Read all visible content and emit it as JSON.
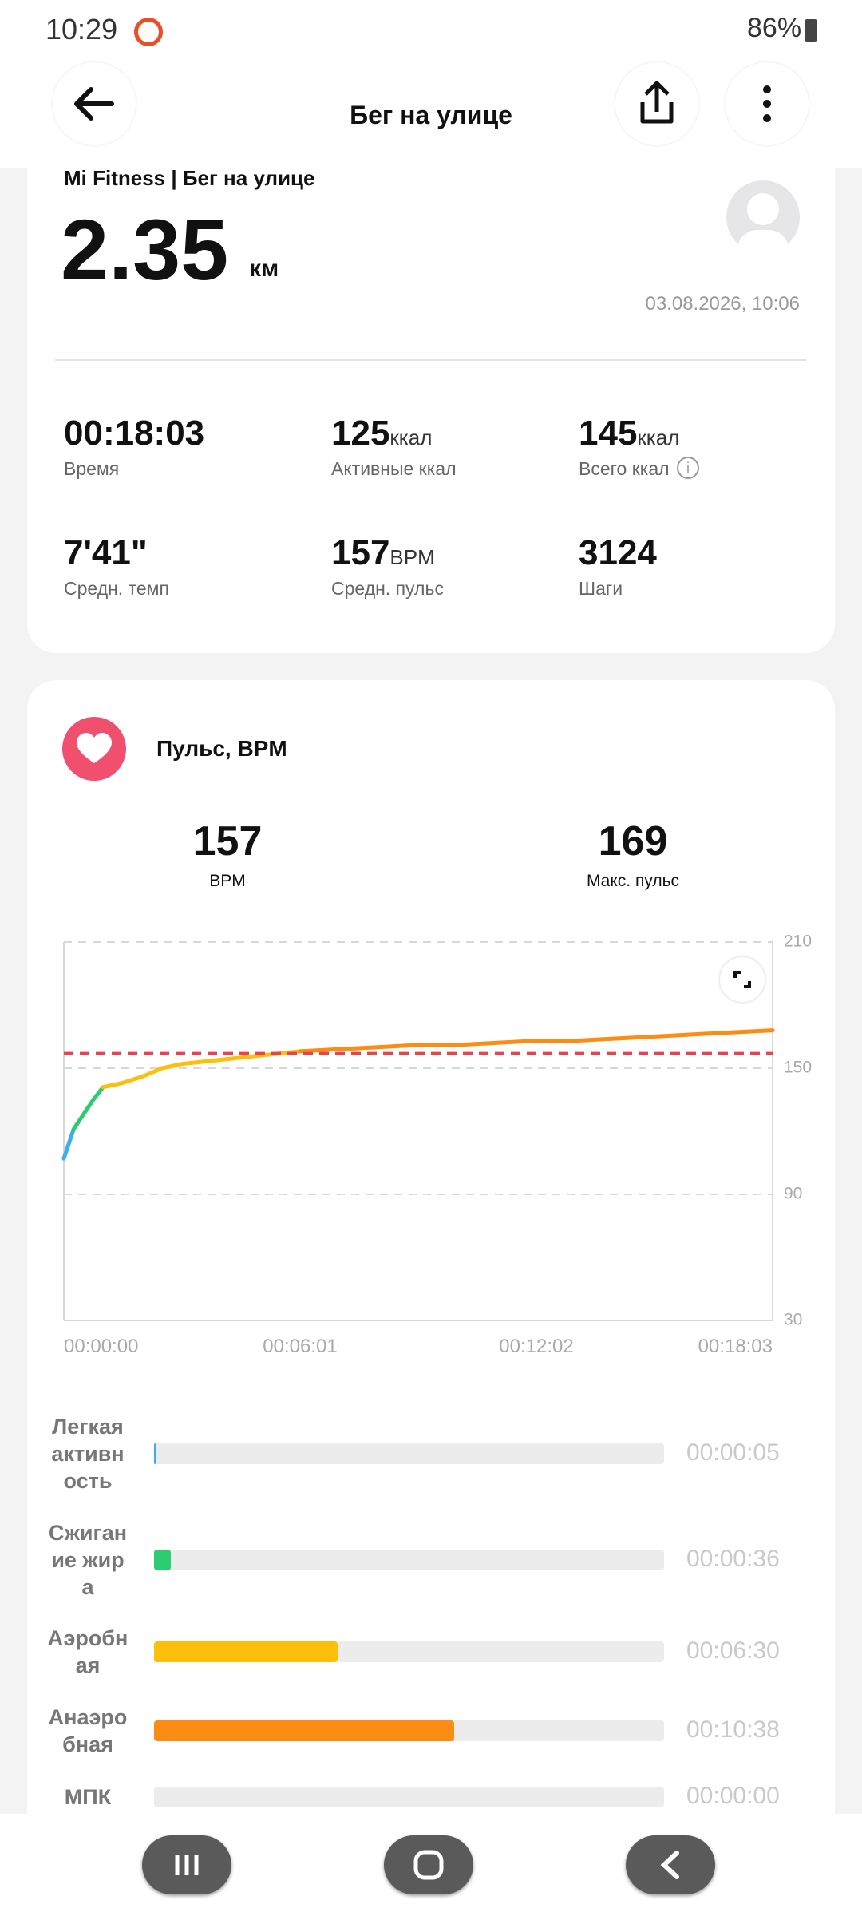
{
  "status_bar": {
    "time": "10:29",
    "battery": "86%"
  },
  "header": {
    "title": "Бег на улице"
  },
  "summary": {
    "source": "Mi Fitness | Бег на улице",
    "distance": "2.35",
    "distance_unit": "км",
    "date": "03.08.2026, 10:06",
    "stats": [
      {
        "value": "00:18:03",
        "label": "Время"
      },
      {
        "value": "125",
        "unit": "ккал",
        "label": "Активные ккал"
      },
      {
        "value": "145",
        "unit": "ккал",
        "label": "Всего ккал"
      },
      {
        "value": "7'41\"",
        "label": "Средн. темп"
      },
      {
        "value": "157",
        "unit": "BPM",
        "label": "Средн. пульс"
      },
      {
        "value": "3124",
        "label": "Шаги"
      }
    ]
  },
  "heart_rate": {
    "title": "Пульс, BPM",
    "average": {
      "value": "157",
      "label": "BPM"
    },
    "max": {
      "value": "169",
      "label": "Макс. пульс"
    }
  },
  "chart_data": {
    "type": "line",
    "x": [
      0,
      15,
      30,
      45,
      60,
      90,
      120,
      150,
      180,
      210,
      240,
      270,
      300,
      360,
      420,
      480,
      540,
      600,
      660,
      720,
      780,
      840,
      900,
      960,
      1020,
      1083
    ],
    "series": [
      {
        "color": "#3daee9",
        "values": [
          107,
          121,
          null,
          null,
          null,
          null,
          null,
          null,
          null,
          null,
          null,
          null,
          null,
          null,
          null,
          null,
          null,
          null,
          null,
          null,
          null,
          null,
          null,
          null,
          null,
          null
        ]
      },
      {
        "color": "#2ecc71",
        "values": [
          null,
          121,
          128,
          135,
          141,
          null,
          null,
          null,
          null,
          null,
          null,
          null,
          null,
          null,
          null,
          null,
          null,
          null,
          null,
          null,
          null,
          null,
          null,
          null,
          null,
          null
        ]
      },
      {
        "color": "#fbbf0c",
        "values": [
          null,
          null,
          null,
          null,
          141,
          143,
          146,
          150,
          152,
          153,
          154,
          155,
          156,
          158,
          null,
          null,
          null,
          null,
          null,
          null,
          null,
          null,
          null,
          null,
          null,
          null
        ]
      },
      {
        "color": "#fb8c14",
        "values": [
          null,
          null,
          null,
          null,
          null,
          null,
          null,
          null,
          null,
          null,
          null,
          null,
          null,
          158,
          159,
          160,
          161,
          161,
          162,
          163,
          163,
          164,
          165,
          166,
          167,
          168
        ]
      }
    ],
    "xlim": [
      0,
      1083
    ],
    "xticks": [
      {
        "value": 0,
        "label": "00:00:00"
      },
      {
        "value": 361,
        "label": "00:06:01"
      },
      {
        "value": 722,
        "label": "00:12:02"
      },
      {
        "value": 1083,
        "label": "00:18:03"
      }
    ],
    "ylim": [
      30,
      210
    ],
    "yticks": [
      30,
      90,
      150,
      210
    ],
    "grid": true,
    "reference_line": 157,
    "reference_color": "#e8434f"
  },
  "zones": [
    {
      "name": "Легкая активность",
      "duration": {
        "value": 5,
        "label": "00:00:05"
      },
      "color": "#3daee9"
    },
    {
      "name": "Сжигание жира",
      "duration": {
        "value": 36,
        "label": "00:00:36"
      },
      "color": "#2ecc71"
    },
    {
      "name": "Аэробная",
      "duration": {
        "value": 390,
        "label": "00:06:30"
      },
      "color": "#fbbf0c"
    },
    {
      "name": "Анаэробная",
      "duration": {
        "value": 638,
        "label": "00:10:38"
      },
      "color": "#fb8c14"
    },
    {
      "name": "МПК",
      "duration": {
        "value": 0,
        "label": "00:00:00"
      },
      "color": "#fb5050"
    }
  ]
}
